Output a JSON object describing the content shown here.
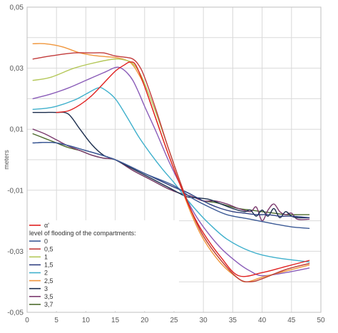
{
  "chart_data": {
    "type": "line",
    "xlabel": "",
    "ylabel": "meters",
    "xlim": [
      0,
      50
    ],
    "ylim": [
      -0.05,
      0.05
    ],
    "x_ticks": [
      0,
      5,
      10,
      15,
      20,
      25,
      30,
      35,
      40,
      45,
      50
    ],
    "y_ticks": [
      {
        "value": 0.05,
        "label": "0,05"
      },
      {
        "value": 0.03,
        "label": "0,03"
      },
      {
        "value": 0.01,
        "label": "0,01"
      },
      {
        "value": -0.01,
        "label": "-0,01"
      },
      {
        "value": -0.03,
        "label": "-0,03"
      },
      {
        "value": -0.05,
        "label": "-0,05"
      }
    ],
    "grid": true,
    "legend_position": "bottom-left",
    "legend_heading": "level of flooding of the compartments:",
    "series": [
      {
        "name": "α'",
        "color": "#e02020",
        "x": [
          5,
          7,
          9,
          11,
          13,
          15,
          16.5,
          17.5,
          18.5,
          20,
          22,
          24,
          26,
          28,
          30,
          33,
          36,
          40,
          44,
          48
        ],
        "y": [
          0.0155,
          0.016,
          0.018,
          0.021,
          0.025,
          0.029,
          0.031,
          0.032,
          0.031,
          0.024,
          0.013,
          0.002,
          -0.008,
          -0.017,
          -0.024,
          -0.032,
          -0.038,
          -0.037,
          -0.035,
          -0.033
        ]
      },
      {
        "name": "0",
        "color": "#3c5a96",
        "x": [
          1,
          5,
          10,
          15,
          20,
          25,
          28,
          31,
          34,
          38,
          42,
          45,
          48
        ],
        "y": [
          0.0055,
          0.0055,
          0.003,
          0.0,
          -0.0045,
          -0.0085,
          -0.0125,
          -0.0155,
          -0.018,
          -0.0195,
          -0.021,
          -0.022,
          -0.0225
        ]
      },
      {
        "name": "0,5",
        "color": "#c23b3b",
        "x": [
          1,
          4,
          8,
          11,
          13,
          15,
          17,
          18,
          19,
          20,
          22,
          24,
          26,
          28,
          30,
          33,
          36,
          38,
          40,
          44,
          48
        ],
        "y": [
          0.033,
          0.034,
          0.035,
          0.035,
          0.035,
          0.034,
          0.0335,
          0.033,
          0.031,
          0.027,
          0.016,
          0.004,
          -0.007,
          -0.017,
          -0.025,
          -0.033,
          -0.039,
          -0.04,
          -0.039,
          -0.036,
          -0.034
        ]
      },
      {
        "name": "1",
        "color": "#b5c85a",
        "x": [
          1,
          4,
          8,
          12,
          15,
          17,
          18,
          19,
          20,
          22,
          24,
          26,
          28,
          30,
          33,
          36,
          38,
          40,
          44,
          48
        ],
        "y": [
          0.026,
          0.027,
          0.03,
          0.032,
          0.033,
          0.0325,
          0.0315,
          0.029,
          0.025,
          0.015,
          0.004,
          -0.007,
          -0.017,
          -0.025,
          -0.033,
          -0.039,
          -0.04,
          -0.039,
          -0.036,
          -0.034
        ]
      },
      {
        "name": "1,5",
        "color": "#2e3f80",
        "x": [
          1,
          5,
          10,
          15,
          20,
          25,
          27,
          29,
          31,
          33,
          35,
          37,
          39,
          41,
          43,
          45,
          48
        ],
        "y": [
          0.0055,
          0.0055,
          0.003,
          0.0,
          -0.0045,
          -0.009,
          -0.0105,
          -0.0125,
          -0.0145,
          -0.016,
          -0.017,
          -0.0175,
          -0.018,
          -0.018,
          -0.0185,
          -0.0185,
          -0.019
        ]
      },
      {
        "name": "2",
        "color": "#3fb0cc",
        "x": [
          1,
          3,
          5,
          8,
          10,
          12,
          13,
          15,
          17,
          19,
          21,
          23,
          25,
          27,
          29,
          31,
          34,
          38,
          42,
          48
        ],
        "y": [
          0.0165,
          0.0168,
          0.0175,
          0.0195,
          0.0215,
          0.0235,
          0.0232,
          0.02,
          0.014,
          0.0075,
          0.002,
          -0.003,
          -0.0075,
          -0.0125,
          -0.017,
          -0.021,
          -0.026,
          -0.03,
          -0.032,
          -0.0335
        ]
      },
      {
        "name": "2,5",
        "color": "#f0963c",
        "x": [
          1,
          3,
          6,
          9,
          12,
          15,
          17,
          18,
          19,
          20,
          22,
          24,
          26,
          28,
          30,
          33,
          36,
          37.5,
          40,
          44,
          48
        ],
        "y": [
          0.038,
          0.038,
          0.037,
          0.035,
          0.034,
          0.0335,
          0.0325,
          0.031,
          0.028,
          0.024,
          0.013,
          0.002,
          -0.008,
          -0.018,
          -0.026,
          -0.034,
          -0.039,
          -0.04,
          -0.0385,
          -0.0365,
          -0.0345
        ]
      },
      {
        "name": "3",
        "color": "#1b2d4d",
        "x": [
          1,
          3,
          5,
          7,
          9,
          11,
          13,
          15,
          18,
          21,
          24,
          27,
          29,
          31,
          33,
          35,
          37,
          38,
          39,
          40,
          41,
          42,
          43,
          44,
          45,
          46,
          48
        ],
        "y": [
          0.0155,
          0.0155,
          0.0155,
          0.015,
          0.01,
          0.005,
          0.0015,
          0.0,
          -0.003,
          -0.006,
          -0.009,
          -0.012,
          -0.0125,
          -0.013,
          -0.0145,
          -0.016,
          -0.017,
          -0.0165,
          -0.0185,
          -0.0165,
          -0.0185,
          -0.016,
          -0.019,
          -0.017,
          -0.0185,
          -0.019,
          -0.019
        ]
      },
      {
        "name": "3,5",
        "color": "#7b3a6e",
        "x": [
          1,
          3,
          5,
          7,
          9,
          11,
          13,
          15,
          18,
          21,
          24,
          26,
          28,
          30,
          32,
          34,
          36,
          38,
          39,
          40,
          41,
          42,
          43,
          44,
          45,
          46,
          48
        ],
        "y": [
          0.01,
          0.0085,
          0.0065,
          0.0045,
          0.003,
          0.0015,
          0.0005,
          0.0,
          -0.0035,
          -0.0065,
          -0.0095,
          -0.011,
          -0.012,
          -0.0135,
          -0.0135,
          -0.0145,
          -0.016,
          -0.017,
          -0.0155,
          -0.02,
          -0.0165,
          -0.0145,
          -0.017,
          -0.018,
          -0.0175,
          -0.0195,
          -0.0195
        ]
      },
      {
        "name": "3,7",
        "color": "#4d6b2c",
        "x": [
          1,
          3,
          5,
          7,
          9,
          11,
          13,
          15,
          18,
          21,
          24,
          26,
          28,
          30,
          32,
          34,
          36,
          38,
          40,
          42,
          44,
          46,
          48
        ],
        "y": [
          0.0085,
          0.007,
          0.0055,
          0.004,
          0.003,
          0.0015,
          0.0005,
          0.0,
          -0.0035,
          -0.0065,
          -0.0095,
          -0.011,
          -0.012,
          -0.0135,
          -0.014,
          -0.015,
          -0.016,
          -0.0165,
          -0.017,
          -0.0175,
          -0.018,
          -0.018,
          -0.018
        ]
      },
      {
        "name": "",
        "color": "#8a5cb8",
        "x": [
          1,
          4,
          7,
          10,
          13,
          15,
          16,
          17,
          18,
          19,
          20,
          22,
          24,
          26,
          28,
          30,
          33,
          36,
          38,
          40,
          44,
          48
        ],
        "y": [
          0.02,
          0.0215,
          0.0235,
          0.026,
          0.0285,
          0.0302,
          0.03,
          0.0285,
          0.026,
          0.022,
          0.0175,
          0.009,
          0.0,
          -0.008,
          -0.016,
          -0.022,
          -0.029,
          -0.034,
          -0.0365,
          -0.038,
          -0.037,
          -0.0355
        ]
      }
    ]
  }
}
